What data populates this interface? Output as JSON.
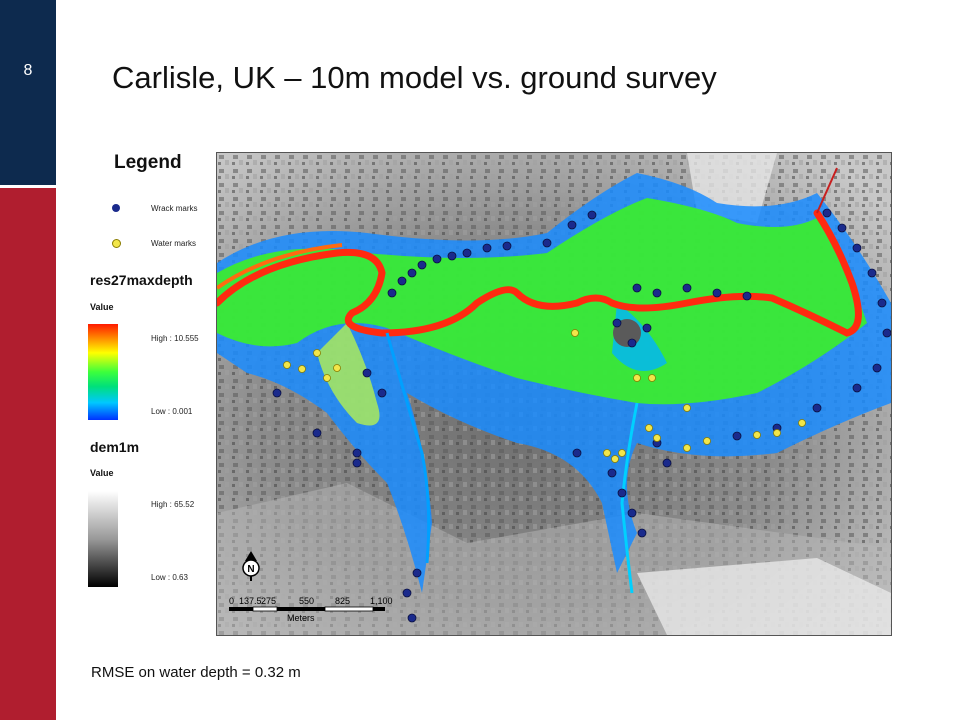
{
  "slide": {
    "number": "8",
    "title": "Carlisle, UK – 10m model vs. ground survey",
    "caption": "RMSE on water depth = 0.32 m"
  },
  "legend": {
    "title": "Legend",
    "points": [
      {
        "label": "Wrack marks",
        "color": "#1a2a8c"
      },
      {
        "label": "Water marks",
        "color": "#f2e64a"
      }
    ],
    "depth_layer": {
      "name": "res27maxdepth",
      "value_label": "Value",
      "high": "High : 10.555",
      "low": "Low : 0.001"
    },
    "dem_layer": {
      "name": "dem1m",
      "value_label": "Value",
      "high": "High : 65.52",
      "low": "Low : 0.63"
    }
  },
  "map": {
    "north_label": "N",
    "scale_ticks": [
      "0",
      "137.5",
      "275",
      "550",
      "825",
      "1,100"
    ],
    "scale_unit": "Meters"
  },
  "colors": {
    "sidebar_top": "#0d2a4e",
    "sidebar_bottom": "#b01e2f",
    "river": "#ff2a10",
    "flood": "#3cf028",
    "shallow": "#1a8cff"
  }
}
